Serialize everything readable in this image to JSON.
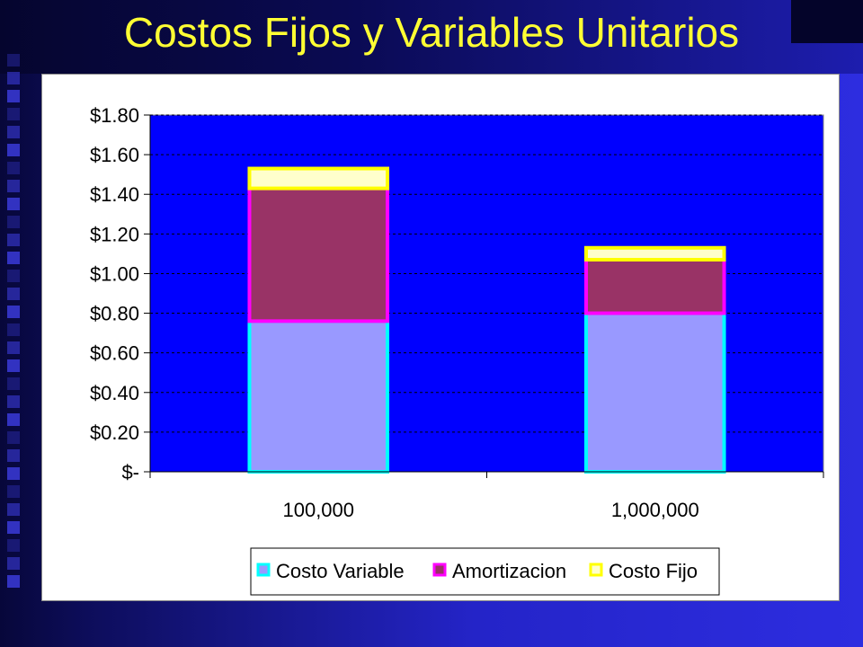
{
  "slide": {
    "title": "Costos Fijos y Variables Unitarios"
  },
  "colors": {
    "plot_background": "#0000ff",
    "costo_variable_fill": "#9999ff",
    "costo_variable_border": "#00ffff",
    "amortizacion_fill": "#993366",
    "amortizacion_border": "#ff00ff",
    "costo_fijo_fill": "#ffffcc",
    "costo_fijo_border": "#ffff00",
    "title_color": "#ffff33"
  },
  "chart_data": {
    "type": "bar",
    "stacked": true,
    "title": "",
    "xlabel": "",
    "ylabel": "",
    "categories": [
      "100,000",
      "1,000,000"
    ],
    "series": [
      {
        "name": "Costo Variable",
        "values": [
          0.76,
          0.8
        ]
      },
      {
        "name": "Amortizacion",
        "values": [
          0.67,
          0.27
        ]
      },
      {
        "name": "Costo Fijo",
        "values": [
          0.1,
          0.06
        ]
      }
    ],
    "ylim": [
      0,
      1.8
    ],
    "y_ticks": [
      0,
      0.2,
      0.4,
      0.6,
      0.8,
      1.0,
      1.2,
      1.4,
      1.6,
      1.8
    ],
    "y_tick_labels": [
      "$-",
      "$0.20",
      "$0.40",
      "$0.60",
      "$0.80",
      "$1.00",
      "$1.20",
      "$1.40",
      "$1.60",
      "$1.80"
    ],
    "grid": "horizontal dashed",
    "legend_position": "bottom-right",
    "legend": [
      "Costo Variable",
      "Amortizacion",
      "Costo Fijo"
    ]
  }
}
